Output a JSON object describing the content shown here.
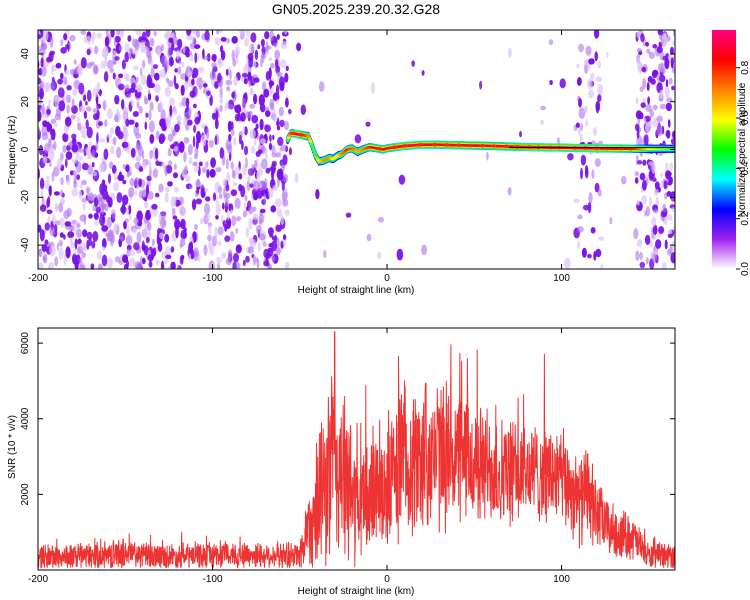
{
  "chart_data": [
    {
      "type": "heatmap",
      "title": "GN05.2025.239.20.32.G28",
      "xlabel": "Height of straight line (km)",
      "ylabel": "Frequency (Hz)",
      "xlim": [
        -200,
        165
      ],
      "ylim": [
        -50,
        50
      ],
      "x_ticks": [
        -200,
        -100,
        0,
        100
      ],
      "y_ticks": [
        -40,
        -20,
        0,
        20,
        40
      ],
      "colorbar": {
        "label": "Normalized spectral amplitude",
        "range": [
          0,
          0.95
        ],
        "ticks": [
          0,
          0.2,
          0.4,
          0.6,
          0.8
        ],
        "tick_labels": [
          "0.0",
          "0.2",
          "0.4",
          "0.6",
          "0.8"
        ],
        "colormap": [
          "#ffffff",
          "#a020f0",
          "#0000ff",
          "#00ffff",
          "#00ff00",
          "#ffff00",
          "#ff8000",
          "#ff0000",
          "#ff0080"
        ]
      },
      "noise_regions": [
        {
          "x_from": -200,
          "x_to": -57,
          "density": "high"
        },
        {
          "x_from": -57,
          "x_to": 165,
          "density": "low"
        },
        {
          "x_from": 108,
          "x_to": 123,
          "density": "medium"
        },
        {
          "x_from": 143,
          "x_to": 165,
          "density": "high"
        }
      ],
      "signal_trace": {
        "x": [
          -57,
          -55,
          -52,
          -48,
          -45,
          -43,
          -41,
          -39,
          -36,
          -33,
          -31,
          -28,
          -26,
          -23,
          -20,
          -17,
          -14,
          -10,
          -6,
          -2,
          0,
          5,
          10,
          20,
          30,
          40,
          60,
          80,
          100,
          120,
          140,
          150,
          165
        ],
        "y": [
          4.0,
          7.0,
          6.5,
          6.0,
          5.5,
          2.0,
          -2.5,
          -5.0,
          -4.5,
          -3.5,
          -4.0,
          -2.5,
          -2.0,
          0.0,
          0.5,
          -1.0,
          0.0,
          1.0,
          0.5,
          0.0,
          0.5,
          1.0,
          1.5,
          2.0,
          2.0,
          1.8,
          1.5,
          1.0,
          0.8,
          0.5,
          0.3,
          0.3,
          0.3
        ],
        "amplitude": [
          0.5,
          0.8,
          0.9,
          0.85,
          0.7,
          0.5,
          0.5,
          0.6,
          0.7,
          0.7,
          0.6,
          0.6,
          0.7,
          0.8,
          0.75,
          0.65,
          0.7,
          0.8,
          0.85,
          0.85,
          0.85,
          0.88,
          0.9,
          0.9,
          0.88,
          0.88,
          0.85,
          0.9,
          0.9,
          0.9,
          0.85,
          0.6,
          0.5
        ]
      }
    },
    {
      "type": "line",
      "xlabel": "Height of straight line (km)",
      "ylabel": "SNR (10 * v/v)",
      "xlim": [
        -200,
        165
      ],
      "ylim": [
        0,
        6400
      ],
      "x_ticks": [
        -200,
        -100,
        0,
        100
      ],
      "y_ticks": [
        2000,
        4000,
        6000
      ],
      "series": [
        {
          "color": "#ee3333",
          "envelope": {
            "x": [
              -200,
              -180,
              -160,
              -150,
              -140,
              -120,
              -100,
              -80,
              -60,
              -50,
              -45,
              -40,
              -35,
              -32,
              -30,
              -27,
              -24,
              -20,
              -15,
              -10,
              -5,
              0,
              5,
              10,
              15,
              20,
              25,
              30,
              35,
              40,
              50,
              60,
              70,
              80,
              90,
              100,
              105,
              110,
              115,
              120,
              125,
              130,
              140,
              150,
              160,
              165
            ],
            "mean": [
              350,
              350,
              380,
              450,
              380,
              350,
              400,
              400,
              380,
              400,
              1200,
              1600,
              2200,
              3000,
              2600,
              2800,
              2200,
              2000,
              1600,
              2000,
              2400,
              2200,
              2600,
              3000,
              2800,
              3000,
              3100,
              3000,
              3100,
              3000,
              2800,
              2700,
              2500,
              2600,
              2600,
              2400,
              2200,
              1800,
              2000,
              1500,
              1200,
              1000,
              900,
              350,
              350,
              350
            ],
            "spread": [
              400,
              400,
              400,
              500,
              400,
              400,
              400,
              400,
              400,
              450,
              1200,
              1800,
              2600,
              3200,
              3000,
              3000,
              2400,
              2200,
              1800,
              2000,
              2000,
              2000,
              2200,
              2400,
              2200,
              2400,
              2300,
              2200,
              2200,
              2000,
              1900,
              1800,
              1600,
              1500,
              1500,
              1500,
              1400,
              1300,
              1500,
              1100,
              900,
              800,
              700,
              400,
              400,
              400
            ]
          },
          "peak": {
            "x": -30,
            "y": 6300
          }
        }
      ]
    }
  ]
}
